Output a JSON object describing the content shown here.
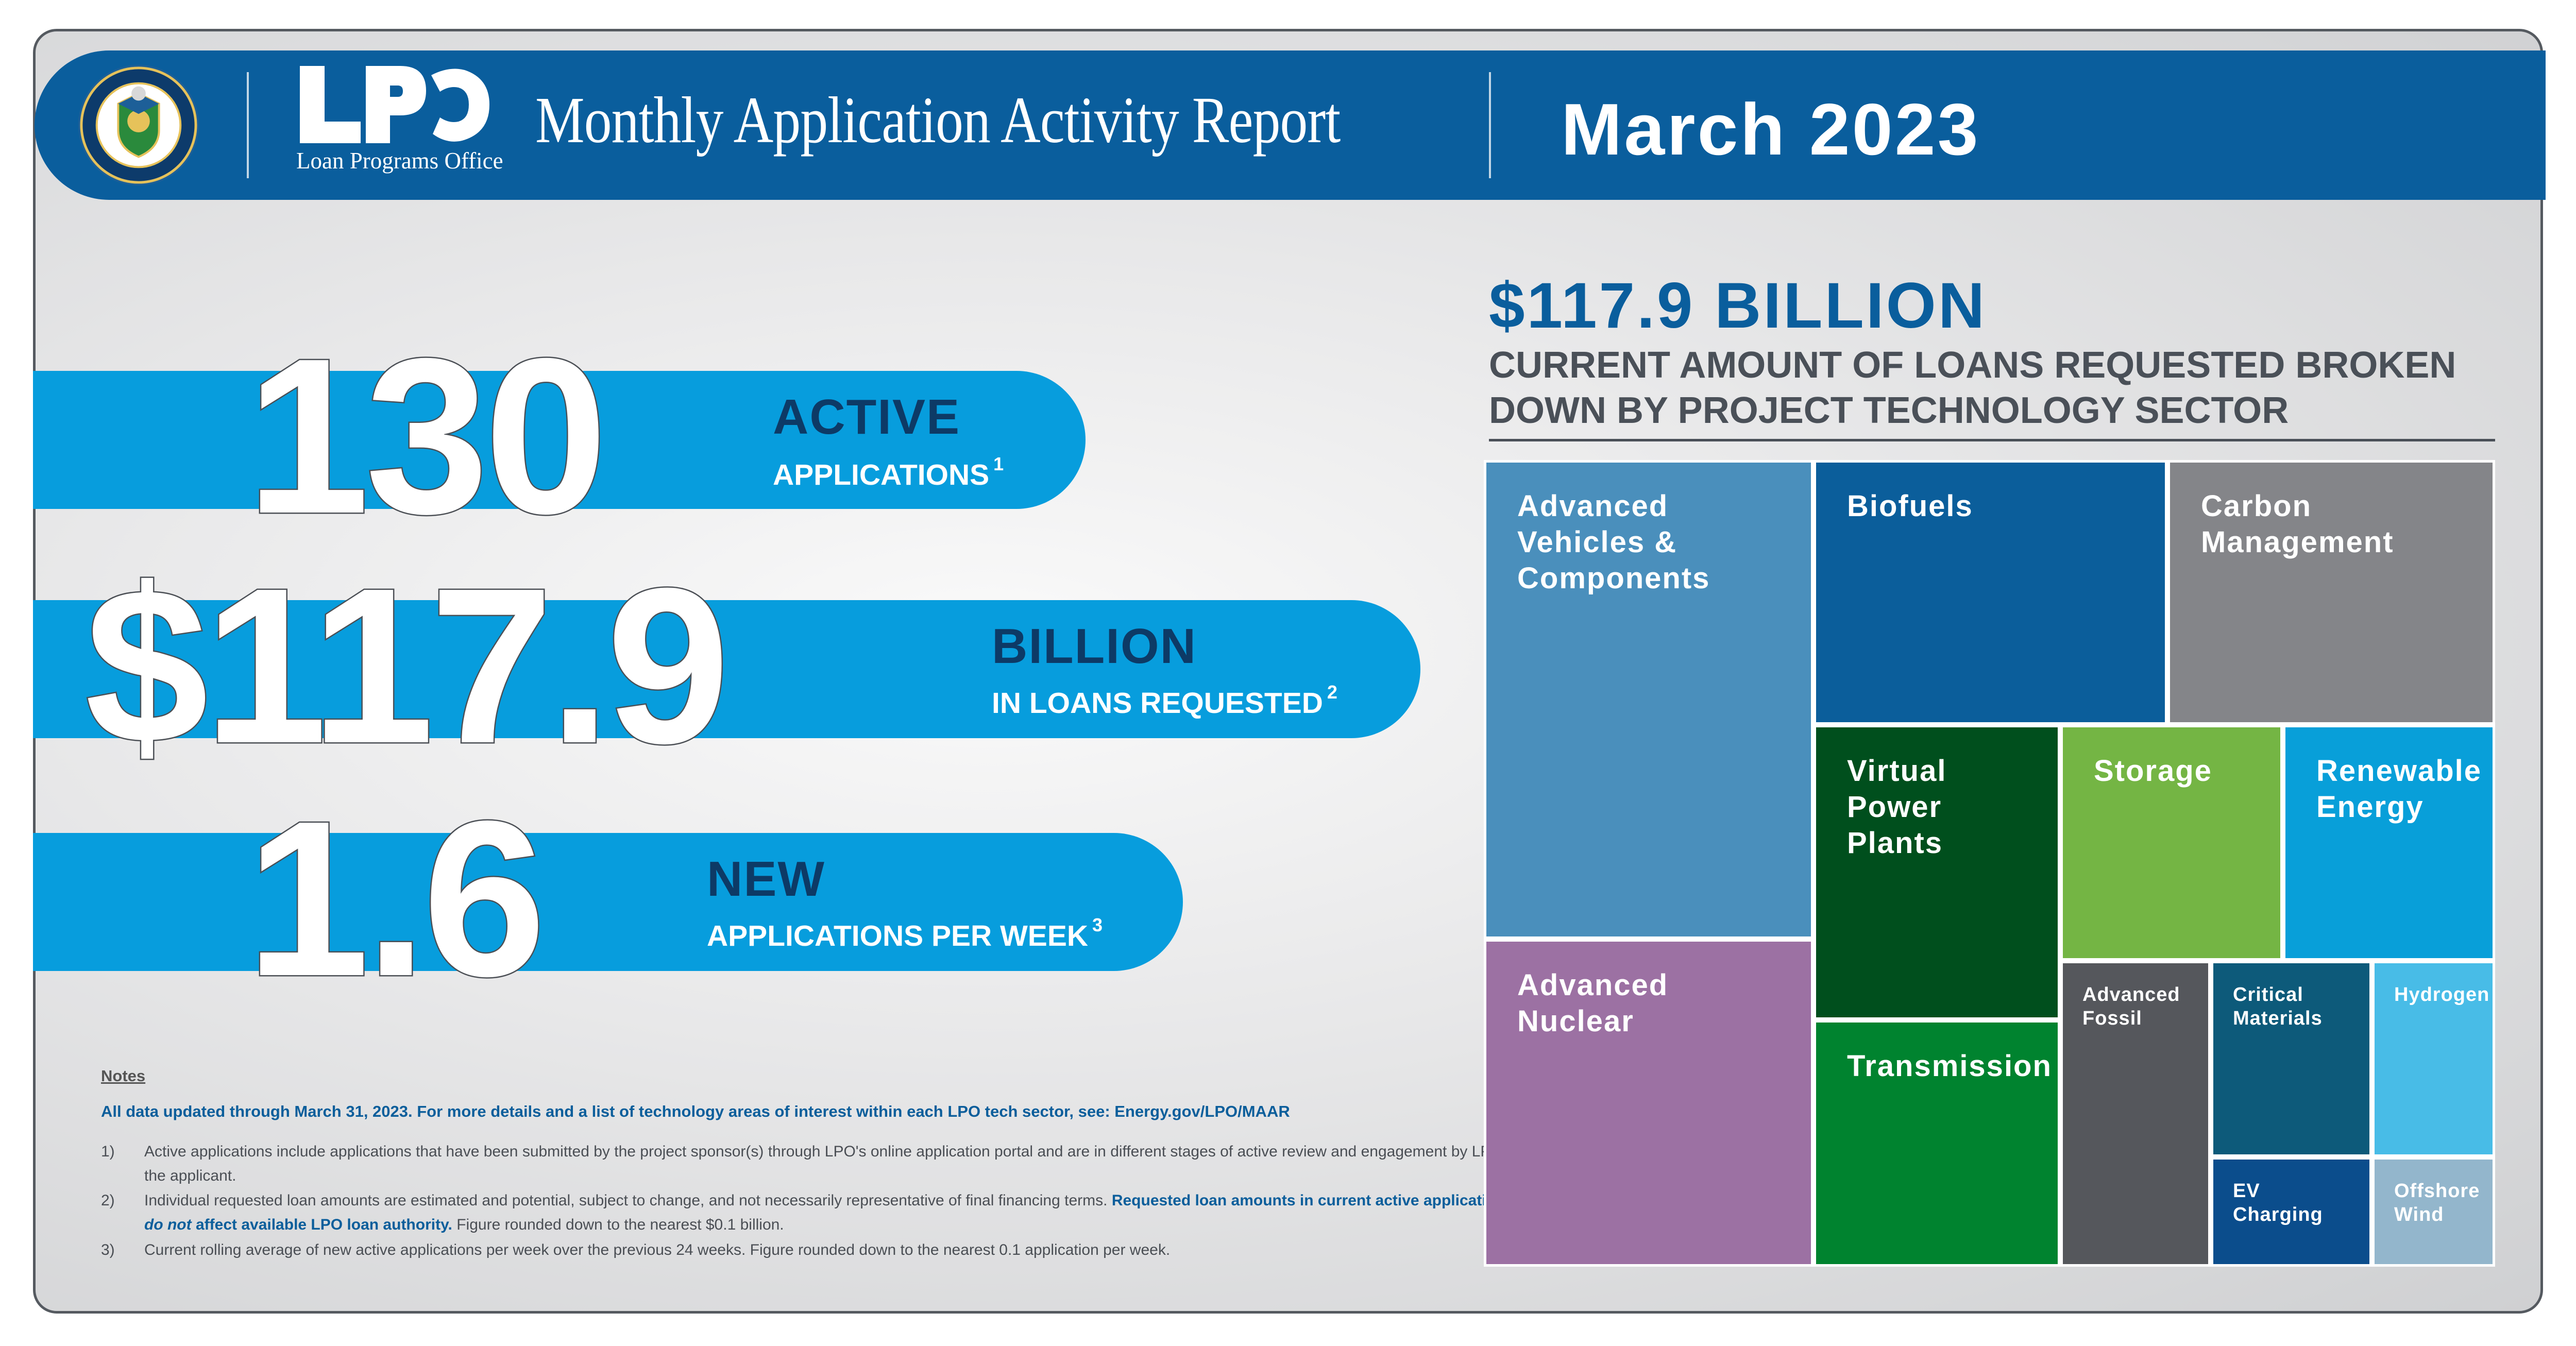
{
  "header": {
    "seal_text": "DEPARTMENT OF ENERGY · UNITED STATES OF AMERICA",
    "logo": "LPO",
    "logo_subtitle": "Loan Programs Office",
    "title": "Monthly Application Activity Report",
    "month": "March 2023"
  },
  "stats": [
    {
      "value": "130",
      "word": "ACTIVE",
      "sub": "APPLICATIONS",
      "footnote": "1"
    },
    {
      "value": "$117.9",
      "word": "BILLION",
      "sub": "IN LOANS REQUESTED",
      "footnote": "2"
    },
    {
      "value": "1.6",
      "word": "NEW",
      "sub": "APPLICATIONS PER WEEK",
      "footnote": "3"
    }
  ],
  "notes": {
    "heading": "Notes",
    "all_data": "All data updated through March 31, 2023. For more details and a list of technology areas of interest within each LPO tech sector, see: Energy.gov/LPO/MAAR",
    "items": [
      {
        "num": "1)",
        "text": "Active applications include applications that have been submitted by the project sponsor(s) through LPO's online application portal and are in different stages of active review and engagement by LPO and the applicant."
      },
      {
        "num": "2)",
        "text_a": "Individual requested loan amounts are estimated and potential, subject to change, and not necessarily representative of final financing terms. ",
        "text_b": "Requested loan amounts in current active applications ",
        "text_c": "do not",
        "text_d": " affect available LPO loan authority.",
        "text_e": " Figure rounded down to the nearest $0.1 billion."
      },
      {
        "num": "3)",
        "text": "Current rolling average of new active applications per week over the previous 24 weeks. Figure rounded down to the nearest 0.1 application per week."
      }
    ]
  },
  "chart_data": {
    "type": "treemap",
    "title": "$117.9 BILLION",
    "subtitle": "CURRENT AMOUNT OF LOANS REQUESTED BROKEN DOWN BY PROJECT TECHNOLOGY SECTOR",
    "categories": [
      {
        "name": "Advanced Vehicles & Components",
        "label": "Advanced\nVehicles &\nComponents",
        "share": 0.188,
        "color": "#4a8fbc"
      },
      {
        "name": "Advanced Nuclear",
        "label": "Advanced\nNuclear",
        "share": 0.127,
        "color": "#9c71a3"
      },
      {
        "name": "Biofuels",
        "label": "Biofuels",
        "share": 0.114,
        "color": "#0b5e9b"
      },
      {
        "name": "Carbon Management",
        "label": "Carbon\nManagement",
        "share": 0.112,
        "color": "#848589"
      },
      {
        "name": "Virtual Power Plants",
        "label": "Virtual\nPower\nPlants",
        "share": 0.088,
        "color": "#004f1d"
      },
      {
        "name": "Transmission",
        "label": "Transmission",
        "share": 0.073,
        "color": "#00832f"
      },
      {
        "name": "Storage",
        "label": "Storage",
        "share": 0.07,
        "color": "#74b544"
      },
      {
        "name": "Renewable Energy",
        "label": "Renewable\nEnergy",
        "share": 0.063,
        "color": "#089fd9"
      },
      {
        "name": "Advanced Fossil",
        "label": "Advanced\nFossil",
        "share": 0.054,
        "color": "#55575c"
      },
      {
        "name": "Critical Materials",
        "label": "Critical\nMaterials",
        "share": 0.036,
        "color": "#0d5a7a"
      },
      {
        "name": "Hydrogen",
        "label": "Hydrogen",
        "share": 0.028,
        "color": "#48bce7"
      },
      {
        "name": "EV Charging",
        "label": "EV\nCharging",
        "share": 0.026,
        "color": "#0b4d8c"
      },
      {
        "name": "Offshore Wind",
        "label": "Offshore\nWind",
        "share": 0.021,
        "color": "#93b6cc"
      }
    ]
  }
}
